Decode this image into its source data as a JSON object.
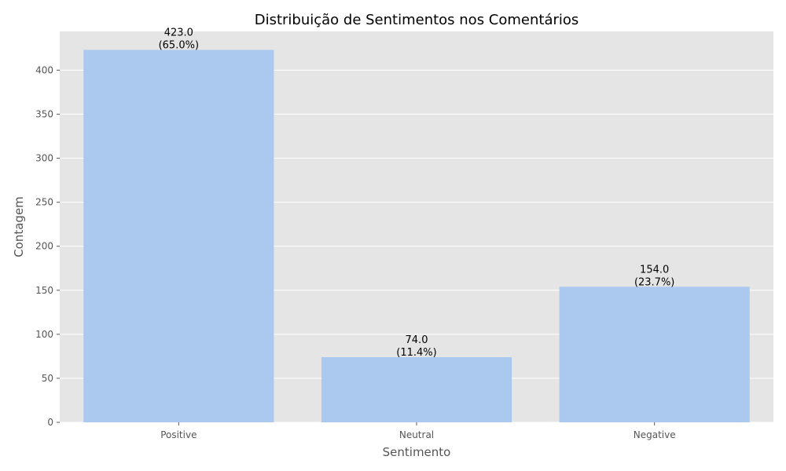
{
  "chart_data": {
    "type": "bar",
    "title": "Distribuição de Sentimentos nos Comentários",
    "xlabel": "Sentimento",
    "ylabel": "Contagem",
    "categories": [
      "Positive",
      "Neutral",
      "Negative"
    ],
    "values": [
      423.0,
      74.0,
      154.0
    ],
    "data_labels": [
      {
        "value": "423.0",
        "percent": "(65.0%)"
      },
      {
        "value": "74.0",
        "percent": "(11.4%)"
      },
      {
        "value": "154.0",
        "percent": "(23.7%)"
      }
    ],
    "ylim": [
      0,
      444
    ],
    "yticks": [
      0,
      50,
      100,
      150,
      200,
      250,
      300,
      350,
      400
    ],
    "grid": true,
    "legend": "none",
    "colors": {
      "bar": "#abc9ee",
      "plot_background": "#e5e5e5",
      "grid": "#ffffff"
    }
  }
}
